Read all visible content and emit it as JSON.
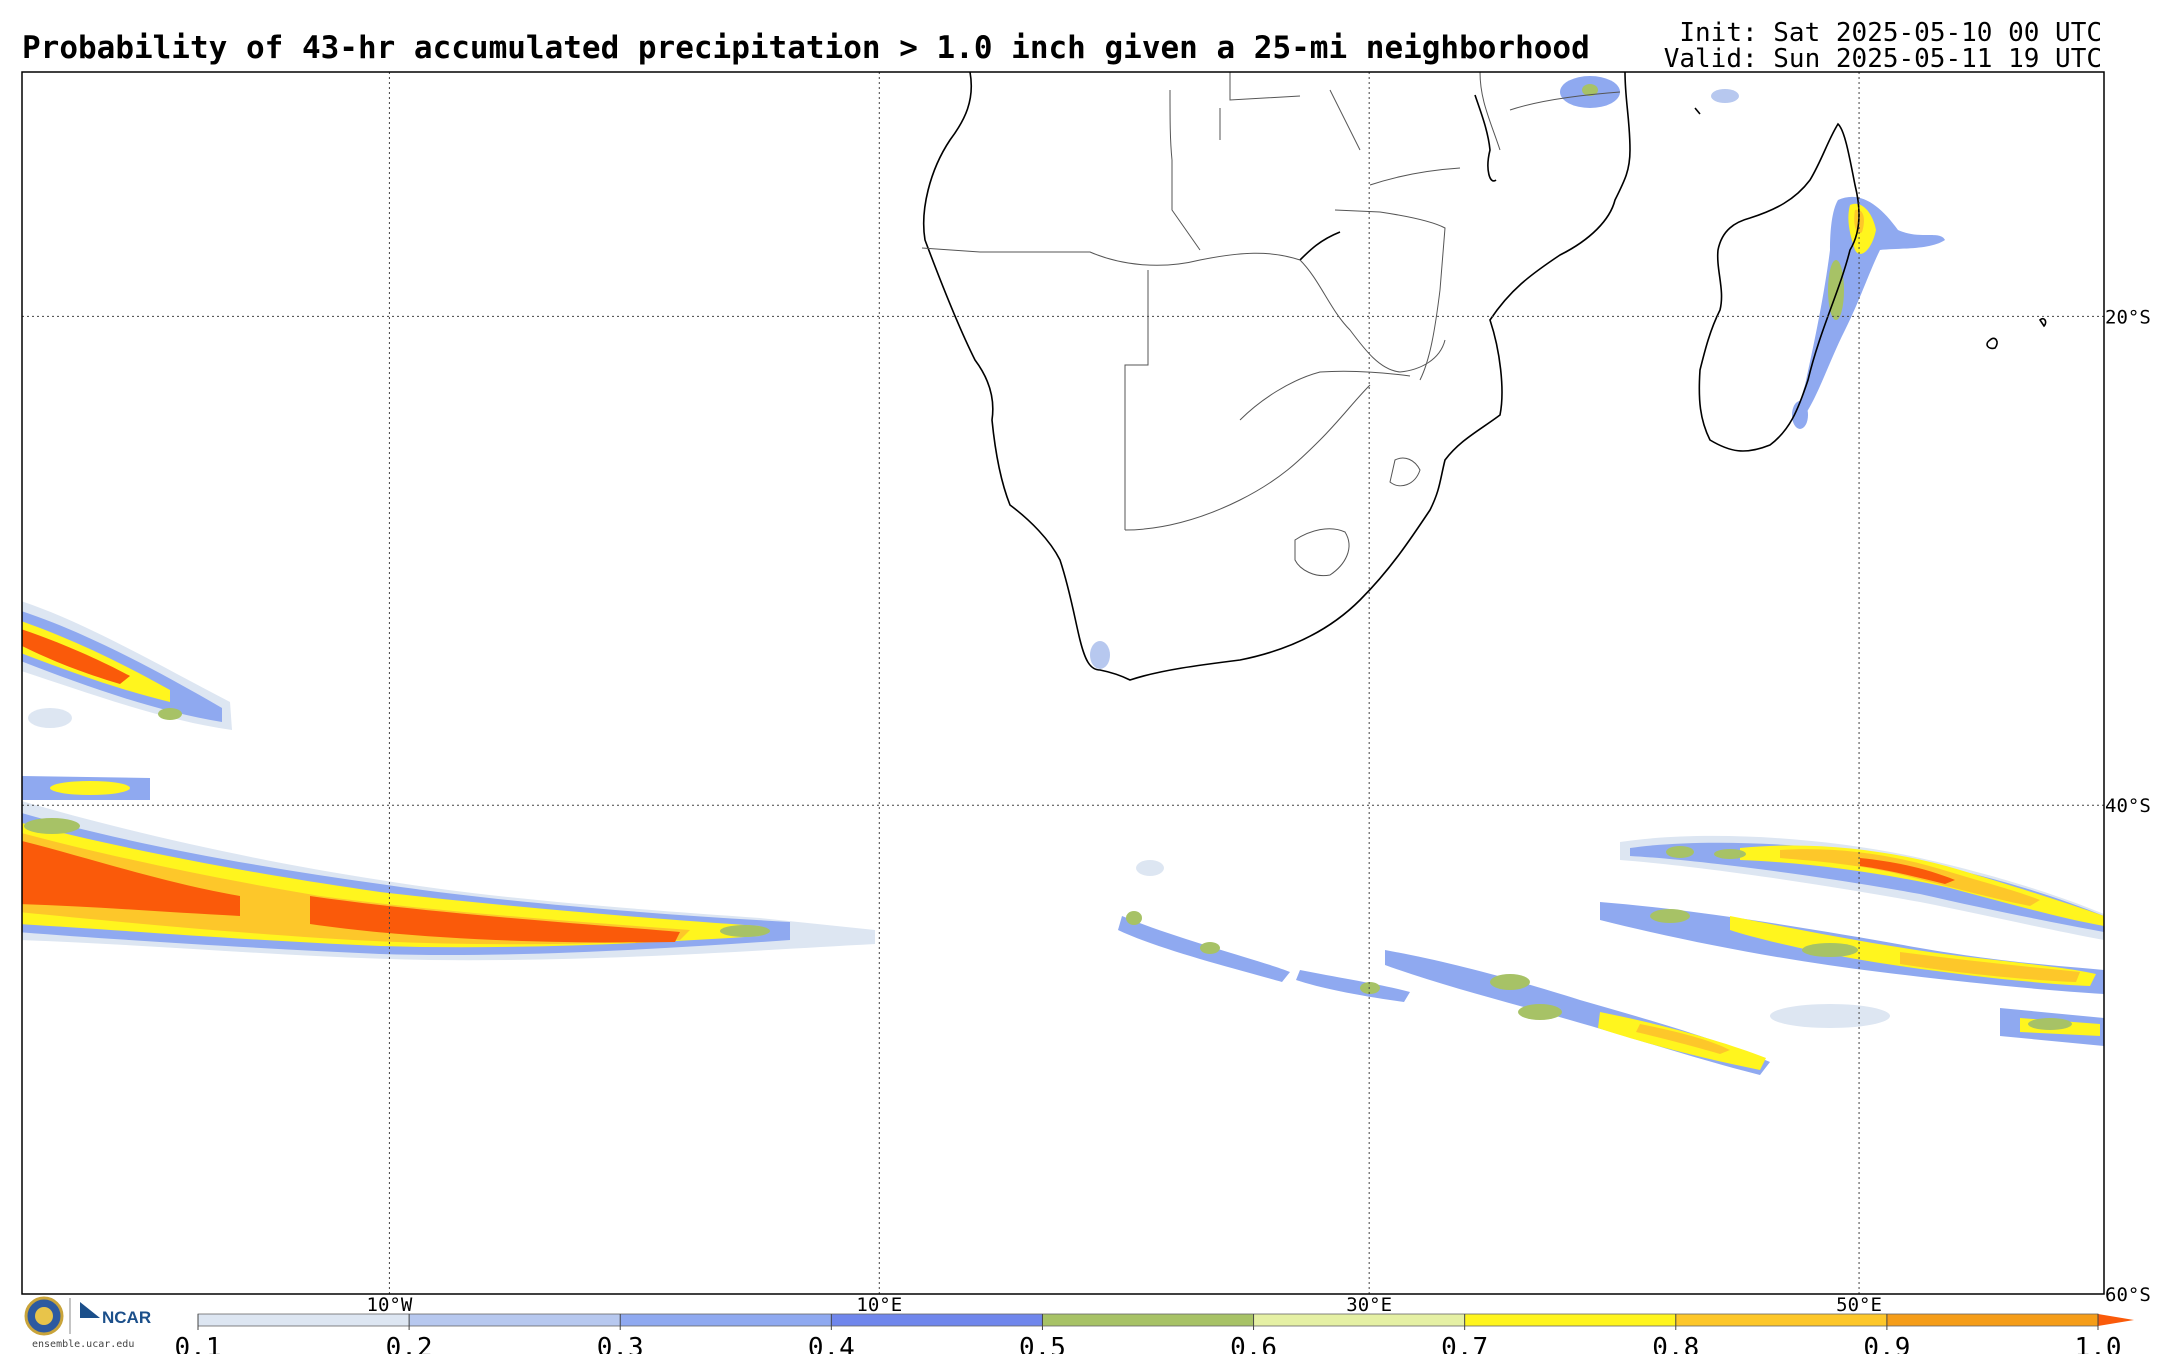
{
  "header": {
    "title": "Probability of 43-hr accumulated precipitation > 1.0 inch given a 25-mi neighborhood",
    "init": "Init: Sat 2025-05-10 00 UTC",
    "valid": "Valid: Sun 2025-05-11 19 UTC"
  },
  "map": {
    "lat_labels": [
      "20°S",
      "40°S",
      "60°S"
    ],
    "lon_labels": [
      "10°W",
      "10°E",
      "30°E",
      "50°E"
    ],
    "extent": {
      "lon_min": -25,
      "lon_max": 60,
      "lat_max": -10,
      "lat_min": -60
    }
  },
  "colorbar": {
    "ticks": [
      "0.1",
      "0.2",
      "0.3",
      "0.4",
      "0.5",
      "0.6",
      "0.7",
      "0.8",
      "0.9",
      "1.0"
    ],
    "colors": [
      "#dde6f2",
      "#b7c8ef",
      "#8fa9f0",
      "#6f86ec",
      "#a7c266",
      "#e5f0a4",
      "#fff51e",
      "#fdc72a",
      "#f59d18"
    ],
    "extend_color": "#fa5a0a"
  },
  "branding": {
    "site": "ensemble.ucar.edu",
    "org": "NCAR",
    "seal_icon": "nsf-seal-icon"
  }
}
